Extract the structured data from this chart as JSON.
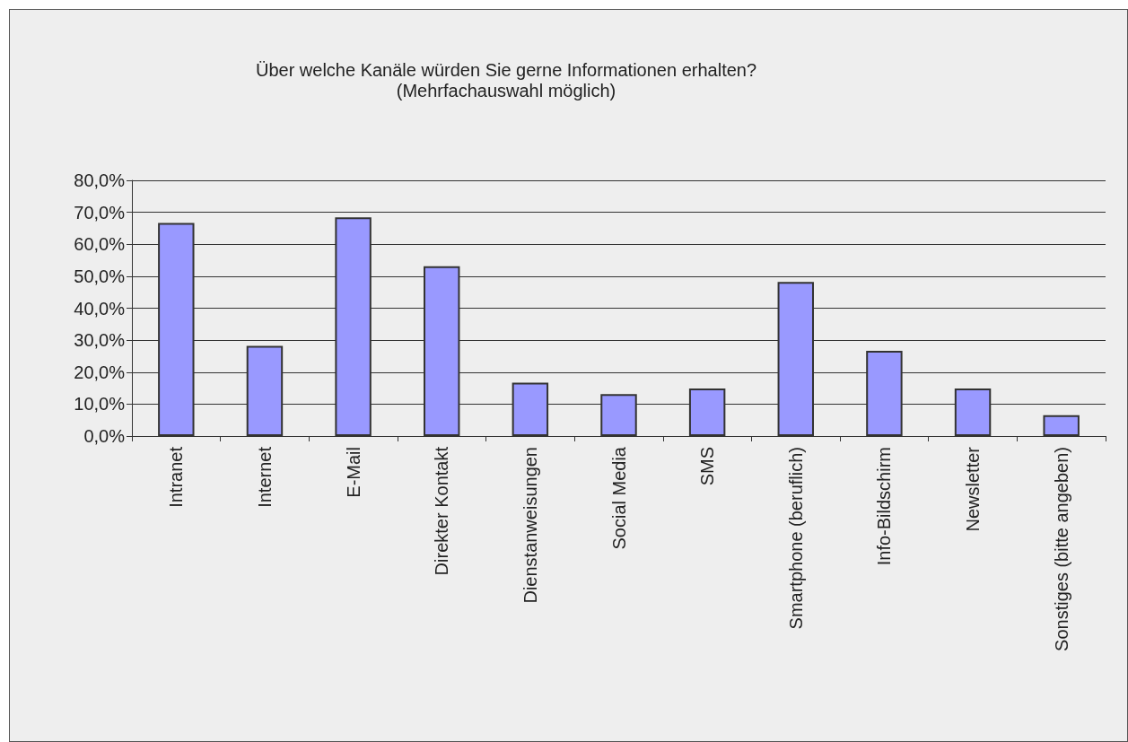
{
  "chart_data": {
    "type": "bar",
    "title": "Über welche Kanäle würden Sie gerne Informationen erhalten?",
    "subtitle": "(Mehrfachauswahl möglich)",
    "categories": [
      "Intranet",
      "Internet",
      "E-Mail",
      "Direkter Kontakt",
      "Dienstanweisungen",
      "Social Media",
      "SMS",
      "Smartphone (beruflich)",
      "Info-Bildschirm",
      "Newsletter",
      "Sonstiges (bitte angeben)"
    ],
    "values": [
      66.7,
      28.2,
      68.4,
      53.1,
      16.7,
      13.1,
      14.9,
      48.2,
      26.7,
      14.9,
      6.5
    ],
    "color": "#9999ff",
    "ylim": [
      0,
      80
    ],
    "yticks": [
      {
        "value": 0,
        "label": "0,0%"
      },
      {
        "value": 10,
        "label": "10,0%"
      },
      {
        "value": 20,
        "label": "20,0%"
      },
      {
        "value": 30,
        "label": "30,0%"
      },
      {
        "value": 40,
        "label": "40,0%"
      },
      {
        "value": 50,
        "label": "50,0%"
      },
      {
        "value": 60,
        "label": "60,0%"
      },
      {
        "value": 70,
        "label": "70,0%"
      },
      {
        "value": 80,
        "label": "80,0%"
      }
    ],
    "grid": "y"
  }
}
